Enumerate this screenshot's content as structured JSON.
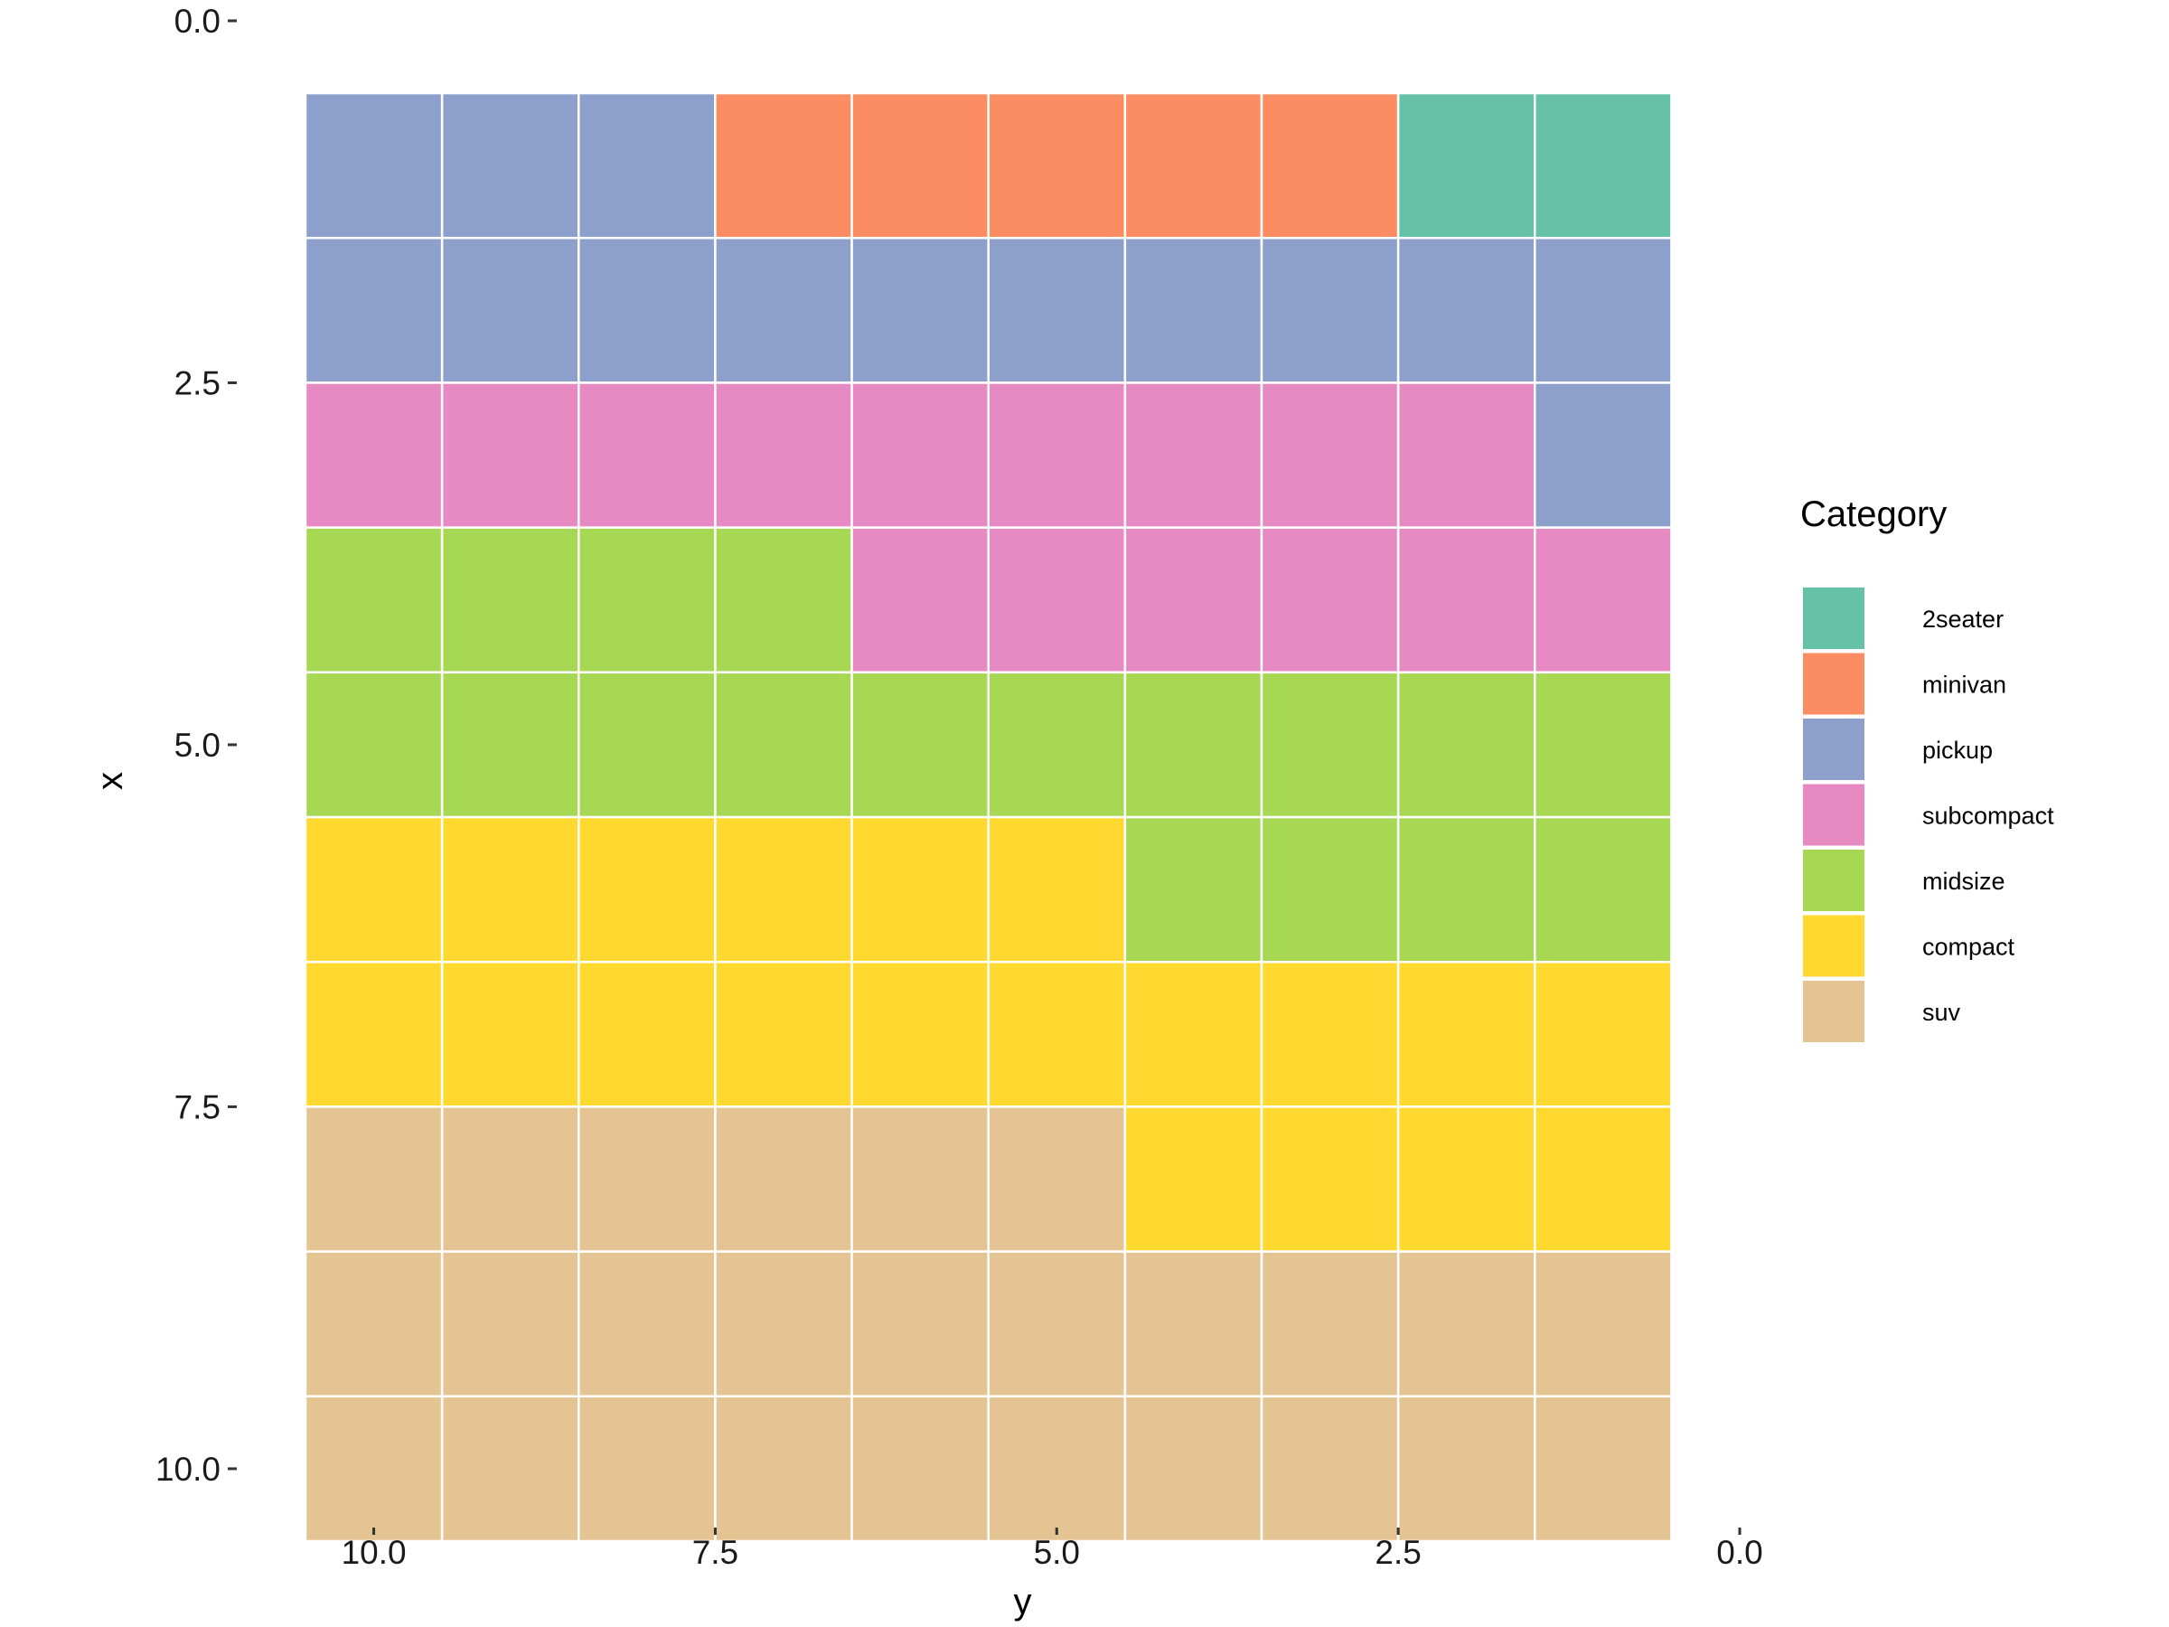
{
  "chart_data": {
    "type": "heatmap",
    "xlabel": "y",
    "ylabel": "x",
    "xlim": [
      10.5,
      0
    ],
    "ylim": [
      0,
      10.5
    ],
    "x_reversed": true,
    "y_reversed": true,
    "x_ticks": [
      10.0,
      7.5,
      5.0,
      2.5,
      0.0
    ],
    "y_ticks": [
      0.0,
      2.5,
      5.0,
      7.5,
      10.0
    ],
    "x_tick_labels": [
      "10.0",
      "7.5",
      "5.0",
      "2.5",
      "0.0"
    ],
    "y_tick_labels": [
      "0.0",
      "2.5",
      "5.0",
      "7.5",
      "10.0"
    ],
    "grid": false,
    "legend": {
      "title": "Category",
      "position": "right",
      "entries": [
        {
          "label": "2seater",
          "color": "#66C2A5"
        },
        {
          "label": "minivan",
          "color": "#FC8D62"
        },
        {
          "label": "pickup",
          "color": "#8DA0CB"
        },
        {
          "label": "subcompact",
          "color": "#E78AC3"
        },
        {
          "label": "midsize",
          "color": "#A6D854"
        },
        {
          "label": "compact",
          "color": "#FFD92F"
        },
        {
          "label": "suv",
          "color": "#E5C494"
        }
      ]
    },
    "y_columns": [
      10,
      9,
      8,
      7,
      6,
      5,
      4,
      3,
      2,
      1
    ],
    "x_rows": [
      1,
      2,
      3,
      4,
      5,
      6,
      7,
      8,
      9,
      10
    ],
    "cells": [
      [
        "pickup",
        "pickup",
        "pickup",
        "minivan",
        "minivan",
        "minivan",
        "minivan",
        "minivan",
        "2seater",
        "2seater"
      ],
      [
        "pickup",
        "pickup",
        "pickup",
        "pickup",
        "pickup",
        "pickup",
        "pickup",
        "pickup",
        "pickup",
        "pickup"
      ],
      [
        "subcompact",
        "subcompact",
        "subcompact",
        "subcompact",
        "subcompact",
        "subcompact",
        "subcompact",
        "subcompact",
        "subcompact",
        "pickup"
      ],
      [
        "midsize",
        "midsize",
        "midsize",
        "midsize",
        "subcompact",
        "subcompact",
        "subcompact",
        "subcompact",
        "subcompact",
        "subcompact"
      ],
      [
        "midsize",
        "midsize",
        "midsize",
        "midsize",
        "midsize",
        "midsize",
        "midsize",
        "midsize",
        "midsize",
        "midsize"
      ],
      [
        "compact",
        "compact",
        "compact",
        "compact",
        "compact",
        "compact",
        "midsize",
        "midsize",
        "midsize",
        "midsize"
      ],
      [
        "compact",
        "compact",
        "compact",
        "compact",
        "compact",
        "compact",
        "compact",
        "compact",
        "compact",
        "compact"
      ],
      [
        "suv",
        "suv",
        "suv",
        "suv",
        "suv",
        "suv",
        "compact",
        "compact",
        "compact",
        "compact"
      ],
      [
        "suv",
        "suv",
        "suv",
        "suv",
        "suv",
        "suv",
        "suv",
        "suv",
        "suv",
        "suv"
      ],
      [
        "suv",
        "suv",
        "suv",
        "suv",
        "suv",
        "suv",
        "suv",
        "suv",
        "suv",
        "suv"
      ]
    ]
  }
}
